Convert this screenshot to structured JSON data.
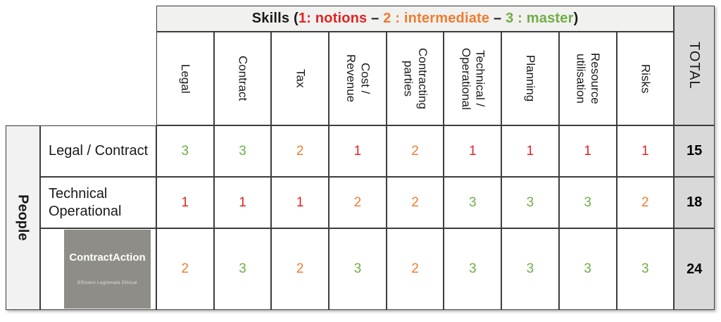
{
  "skills_header": {
    "prefix": "Skills (",
    "level1": "1: notions",
    "dash1": " – ",
    "level2": "2 : intermediate",
    "dash2": " – ",
    "level3": "3 : master",
    "suffix": ")",
    "colors": {
      "level1": "#e02424",
      "level2": "#ed7d31",
      "level3": "#70ad47"
    }
  },
  "people_label": "People",
  "total_label": "TOTAL",
  "columns": [
    "Legal",
    "Contract",
    "Tax",
    "Cost /\nRevenue",
    "Contracting\nparties",
    "Technical /\nOperational",
    "Planning",
    "Resource\nutilisation",
    "Risks"
  ],
  "rows": [
    {
      "label": "Legal / Contract",
      "values": [
        "3",
        "3",
        "2",
        "1",
        "2",
        "1",
        "1",
        "1",
        "1"
      ],
      "total": "15"
    },
    {
      "label": "Technical\nOperational",
      "values": [
        "1",
        "1",
        "1",
        "2",
        "2",
        "3",
        "3",
        "3",
        "2"
      ],
      "total": "18"
    },
    {
      "label": "",
      "values": [
        "2",
        "3",
        "2",
        "3",
        "2",
        "3",
        "3",
        "3",
        "3"
      ],
      "total": "24"
    }
  ],
  "logo": {
    "title": "ContractAction",
    "tagline": "Efficient Legitimate Ethical",
    "bg_color": "#8f8d87"
  },
  "level_colors": {
    "1": "#e02424",
    "2": "#ed7d31",
    "3": "#70ad47"
  },
  "surface_colors": {
    "header_bg": "#f1f1ef",
    "total_bg": "#d9d9d9",
    "people_bg": "#f2f2f2",
    "grid_line": "#3d3d3d"
  },
  "chart_data": {
    "type": "table",
    "title": "Skills (1: notions – 2 : intermediate – 3 : master)",
    "row_group_label": "People",
    "columns": [
      "Legal",
      "Contract",
      "Tax",
      "Cost / Revenue",
      "Contracting parties",
      "Technical / Operational",
      "Planning",
      "Resource utilisation",
      "Risks",
      "TOTAL"
    ],
    "rows": [
      {
        "label": "Legal / Contract",
        "values": [
          3,
          3,
          2,
          1,
          2,
          1,
          1,
          1,
          1
        ],
        "total": 15
      },
      {
        "label": "Technical Operational",
        "values": [
          1,
          1,
          1,
          2,
          2,
          3,
          3,
          3,
          2
        ],
        "total": 18
      },
      {
        "label": "ContractAction (logo row)",
        "values": [
          2,
          3,
          2,
          3,
          2,
          3,
          3,
          3,
          3
        ],
        "total": 24
      }
    ],
    "legend": {
      "1": "notions",
      "2": "intermediate",
      "3": "master"
    },
    "level_colors": {
      "1": "#e02424",
      "2": "#ed7d31",
      "3": "#70ad47"
    },
    "layout": {
      "column_headers_rotated": true,
      "total_column_highlighted": true,
      "grid": true
    }
  }
}
